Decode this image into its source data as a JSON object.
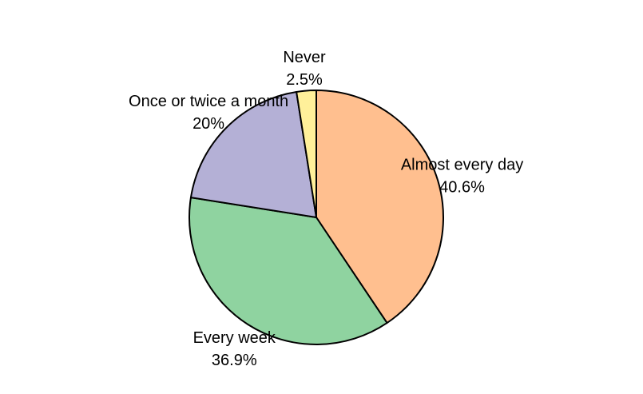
{
  "chart_data": {
    "type": "pie",
    "title": "",
    "start_angle_deg": 90,
    "direction": "clockwise",
    "slices": [
      {
        "label": "Almost every day",
        "value": 40.6,
        "value_label": "40.6%",
        "color": "#FFBF8F"
      },
      {
        "label": "Every week",
        "value": 36.9,
        "value_label": "36.9%",
        "color": "#8FD3A0"
      },
      {
        "label": "Once or twice a month",
        "value": 20,
        "value_label": "20%",
        "color": "#B4B0D6"
      },
      {
        "label": "Never",
        "value": 2.5,
        "value_label": "2.5%",
        "color": "#FFF09A"
      }
    ],
    "edge_color": "#000000"
  }
}
